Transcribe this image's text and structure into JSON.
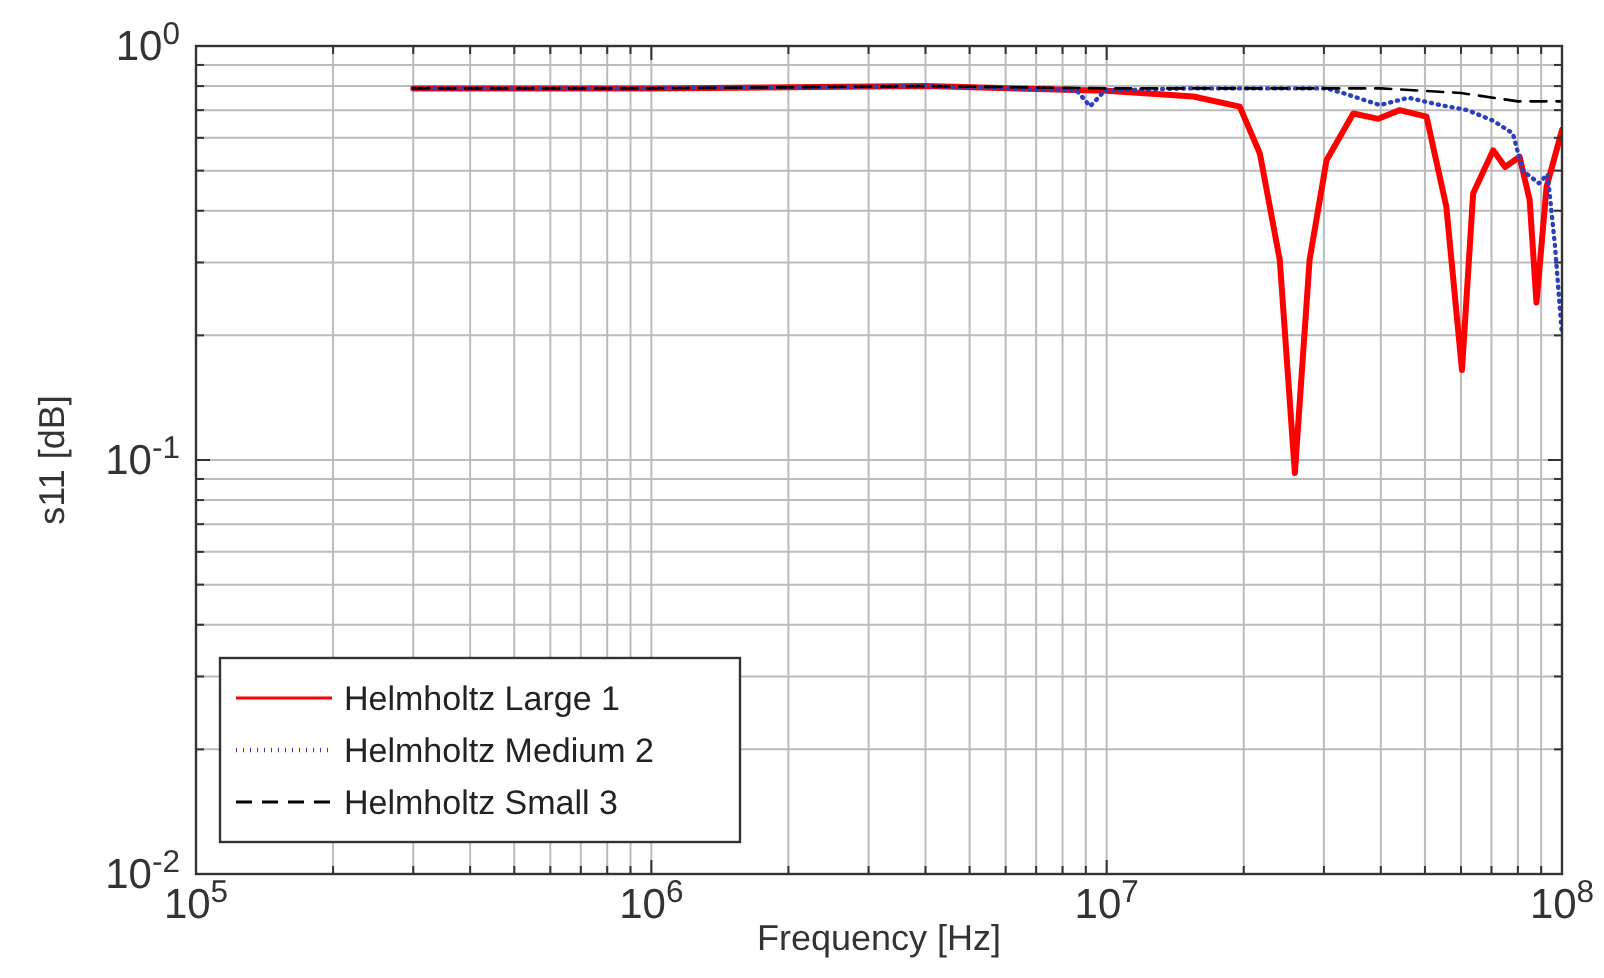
{
  "chart_data": {
    "type": "line",
    "xlabel": "Frequency [Hz]",
    "ylabel": "s11 [dB]",
    "log": "xy",
    "grid": true,
    "legend": "bottom left",
    "xlim": [
      100000,
      100000000
    ],
    "xticks": [
      {
        "value": 100000,
        "label": "10$^{5}$"
      },
      {
        "value": 200000,
        "label": null
      },
      {
        "value": 300000,
        "label": null
      },
      {
        "value": 400000,
        "label": null
      },
      {
        "value": 500000,
        "label": null
      },
      {
        "value": 600000,
        "label": null
      },
      {
        "value": 700000,
        "label": null
      },
      {
        "value": 800000,
        "label": null
      },
      {
        "value": 900000,
        "label": null
      },
      {
        "value": 1000000,
        "label": "10$^{6}$"
      },
      {
        "value": 2000000,
        "label": null
      },
      {
        "value": 3000000,
        "label": null
      },
      {
        "value": 4000000,
        "label": null
      },
      {
        "value": 5000000,
        "label": null
      },
      {
        "value": 6000000,
        "label": null
      },
      {
        "value": 7000000,
        "label": null
      },
      {
        "value": 8000000,
        "label": null
      },
      {
        "value": 9000000,
        "label": null
      },
      {
        "value": 10000000,
        "label": "10$^{7}$"
      },
      {
        "value": 20000000,
        "label": null
      },
      {
        "value": 30000000,
        "label": null
      },
      {
        "value": 40000000,
        "label": null
      },
      {
        "value": 50000000,
        "label": null
      },
      {
        "value": 60000000,
        "label": null
      },
      {
        "value": 70000000,
        "label": null
      },
      {
        "value": 80000000,
        "label": null
      },
      {
        "value": 90000000,
        "label": null
      },
      {
        "value": 100000000,
        "label": "10$^{8}$"
      }
    ],
    "ylim": [
      0.01,
      1
    ],
    "yticks": [
      {
        "value": 0.01,
        "label": "10$^{-2}$"
      },
      {
        "value": 0.02,
        "label": null
      },
      {
        "value": 0.03,
        "label": null
      },
      {
        "value": 0.04,
        "label": null
      },
      {
        "value": 0.05,
        "label": null
      },
      {
        "value": 0.06,
        "label": null
      },
      {
        "value": 0.07,
        "label": null
      },
      {
        "value": 0.08,
        "label": null
      },
      {
        "value": 0.09,
        "label": null
      },
      {
        "value": 0.1,
        "label": "10$^{-1}$"
      },
      {
        "value": 0.2,
        "label": null
      },
      {
        "value": 0.3,
        "label": null
      },
      {
        "value": 0.4,
        "label": null
      },
      {
        "value": 0.5,
        "label": null
      },
      {
        "value": 0.6,
        "label": null
      },
      {
        "value": 0.7,
        "label": null
      },
      {
        "value": 0.8,
        "label": null
      },
      {
        "value": 0.9,
        "label": null
      },
      {
        "value": 1,
        "label": "10$^{0}$"
      }
    ],
    "series": [
      {
        "name": "Helmholtz Large 1",
        "color": "#ff0000",
        "line_style": "solid",
        "x": [
          300000,
          1000000,
          4000000,
          10000000,
          15500000,
          19600000,
          21700000,
          24000000,
          25900000,
          27900000,
          30400000,
          34800000,
          39500000,
          44000000,
          50400000,
          55700000,
          60300000,
          63800000,
          70600000,
          75000000,
          80700000,
          84900000,
          87900000,
          92500000,
          100000000
        ],
        "values": [
          0.79,
          0.79,
          0.8,
          0.78,
          0.755,
          0.714,
          0.55,
          0.304,
          0.093,
          0.304,
          0.53,
          0.687,
          0.667,
          0.7,
          0.675,
          0.41,
          0.165,
          0.44,
          0.56,
          0.51,
          0.54,
          0.425,
          0.24,
          0.457,
          0.627
        ]
      },
      {
        "name": "Helmholtz Medium 2",
        "color": "#2b3fbf",
        "line_style": "dotted",
        "x": [
          300000,
          1000000,
          4000000,
          8600000,
          9200000,
          9900000,
          15000000,
          30400000,
          33000000,
          39800000,
          46000000,
          54000000,
          62000000,
          70600000,
          78000000,
          82000000,
          89000000,
          93000000,
          96500000,
          100000000
        ],
        "values": [
          0.79,
          0.79,
          0.8,
          0.78,
          0.715,
          0.78,
          0.79,
          0.79,
          0.77,
          0.72,
          0.75,
          0.72,
          0.7,
          0.66,
          0.615,
          0.5,
          0.466,
          0.49,
          0.33,
          0.2
        ]
      },
      {
        "name": "Helmholtz Small 3",
        "color": "#000000",
        "line_style": "dashed",
        "x": [
          300000,
          1000000,
          4000000,
          10000000,
          40000000,
          60000000,
          80000000,
          100000000
        ],
        "values": [
          0.79,
          0.79,
          0.8,
          0.79,
          0.79,
          0.77,
          0.735,
          0.735
        ]
      }
    ]
  }
}
